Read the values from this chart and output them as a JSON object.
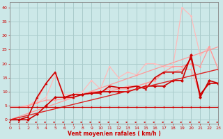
{
  "bg_color": "#cce8e8",
  "grid_color": "#aacccc",
  "line_color_dark": "#cc0000",
  "xlabel": "Vent moyen/en rafales ( km/h )",
  "xlabel_color": "#cc0000",
  "xlim": [
    0,
    23
  ],
  "ylim": [
    -1.5,
    42
  ],
  "yticks": [
    0,
    5,
    10,
    15,
    20,
    25,
    30,
    35,
    40
  ],
  "xticks": [
    0,
    1,
    2,
    3,
    4,
    5,
    6,
    7,
    8,
    9,
    10,
    11,
    12,
    13,
    14,
    15,
    16,
    17,
    18,
    19,
    20,
    21,
    22,
    23
  ],
  "series": [
    {
      "x": [
        0,
        1,
        2,
        3,
        4,
        5,
        6,
        7,
        8,
        9,
        10,
        11,
        12,
        13,
        14,
        15,
        16,
        17,
        18,
        19,
        20,
        21,
        22,
        23
      ],
      "y": [
        4.5,
        4.5,
        4.5,
        4.5,
        4.5,
        4.5,
        4.5,
        4.5,
        4.5,
        4.5,
        4.5,
        4.5,
        4.5,
        4.5,
        4.5,
        4.5,
        4.5,
        4.5,
        4.5,
        4.5,
        4.5,
        4.5,
        4.5,
        4.5
      ],
      "color": "#ffaaaa",
      "lw": 0.9,
      "marker": "D",
      "ms": 1.8,
      "linestyle": "-"
    },
    {
      "x": [
        0,
        1,
        2,
        3,
        4,
        5,
        6,
        7,
        8,
        9,
        10,
        11,
        12,
        13,
        14,
        15,
        16,
        17,
        18,
        19,
        20,
        21,
        22,
        23
      ],
      "y": [
        4.5,
        4.5,
        5,
        7,
        13,
        17,
        8,
        8,
        9,
        10,
        10,
        11,
        11,
        12,
        12,
        13,
        14,
        17,
        17,
        18,
        18,
        9,
        13,
        13
      ],
      "color": "#ffaaaa",
      "lw": 0.9,
      "marker": "D",
      "ms": 1.8,
      "linestyle": "-"
    },
    {
      "x": [
        0,
        1,
        2,
        3,
        4,
        5,
        6,
        7,
        8,
        9,
        10,
        11,
        12,
        13,
        14,
        15,
        16,
        17,
        18,
        19,
        20,
        21,
        22,
        23
      ],
      "y": [
        4.5,
        4.5,
        5,
        6,
        8,
        16,
        9,
        9,
        10,
        14,
        11,
        19,
        15,
        17,
        16,
        20,
        20,
        19,
        19,
        40,
        37,
        23,
        26,
        18
      ],
      "color": "#ffbbbb",
      "lw": 0.9,
      "marker": "D",
      "ms": 1.8,
      "linestyle": "-"
    },
    {
      "x": [
        0,
        23
      ],
      "y": [
        0,
        26
      ],
      "color": "#ff9999",
      "lw": 0.9,
      "marker": null,
      "ms": 0,
      "linestyle": "-"
    },
    {
      "x": [
        0,
        1,
        2,
        3,
        4,
        5,
        6,
        7,
        8,
        9,
        10,
        11,
        12,
        13,
        14,
        15,
        16,
        17,
        18,
        19,
        20,
        21,
        22,
        23
      ],
      "y": [
        4.5,
        4.5,
        5,
        6,
        7,
        7,
        7.5,
        8,
        9,
        10,
        10,
        10,
        11,
        11,
        12,
        13,
        14,
        17,
        19,
        19,
        20,
        19,
        26,
        18
      ],
      "color": "#ff9999",
      "lw": 0.9,
      "marker": "D",
      "ms": 1.8,
      "linestyle": "-"
    },
    {
      "x": [
        0,
        1,
        2,
        3,
        4,
        5,
        6,
        7,
        8,
        9,
        10,
        11,
        12,
        13,
        14,
        15,
        16,
        17,
        18,
        19,
        20,
        21,
        22,
        23
      ],
      "y": [
        0,
        0,
        1,
        8,
        13,
        17,
        8,
        8,
        9,
        9.5,
        9.5,
        12,
        11.5,
        11.5,
        12,
        11,
        15,
        17,
        17,
        17,
        22,
        9,
        13,
        13
      ],
      "color": "#cc0000",
      "lw": 1.2,
      "marker": "^",
      "ms": 2.5,
      "linestyle": "-"
    },
    {
      "x": [
        0,
        1,
        2,
        3,
        4,
        5,
        6,
        7,
        8,
        9,
        10,
        11,
        12,
        13,
        14,
        15,
        16,
        17,
        18,
        19,
        20,
        21,
        22,
        23
      ],
      "y": [
        0,
        0,
        0,
        2,
        5,
        8,
        8,
        9,
        9,
        9.5,
        10,
        10,
        10,
        10,
        11,
        12,
        12,
        12,
        14,
        14,
        23,
        8,
        14,
        13
      ],
      "color": "#cc0000",
      "lw": 1.2,
      "marker": "D",
      "ms": 2.5,
      "linestyle": "-"
    },
    {
      "x": [
        0,
        23
      ],
      "y": [
        0,
        18
      ],
      "color": "#dd2222",
      "lw": 1.0,
      "marker": null,
      "ms": 0,
      "linestyle": "-"
    },
    {
      "x": [
        0,
        1,
        2,
        3,
        4,
        5,
        6,
        7,
        8,
        9,
        10,
        11,
        12,
        13,
        14,
        15,
        16,
        17,
        18,
        19,
        20,
        21,
        22,
        23
      ],
      "y": [
        4.5,
        4.5,
        4.5,
        4.5,
        4.5,
        4.5,
        4.5,
        4.5,
        4.5,
        4.5,
        4.5,
        4.5,
        4.5,
        4.5,
        4.5,
        4.5,
        4.5,
        4.5,
        4.5,
        4.5,
        4.5,
        4.5,
        4.5,
        4.5
      ],
      "color": "#cc0000",
      "lw": 0.8,
      "marker": "D",
      "ms": 1.5,
      "linestyle": "-"
    }
  ],
  "wind_symbols": true,
  "wind_y": -0.9
}
